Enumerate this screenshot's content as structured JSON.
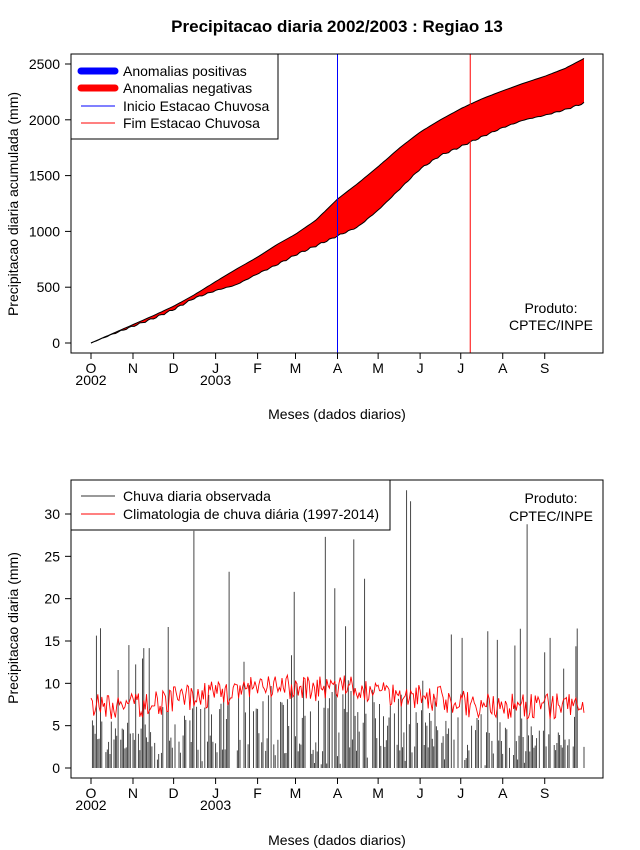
{
  "figure_title": "Precipitacao diaria 2002/2003 : Regiao 13",
  "chart_data": [
    {
      "type": "area",
      "title": "Precipitacao diaria 2002/2003 : Regiao 13",
      "ylabel": "Precipitacao diaria acumulada (mm)",
      "xlabel": "Meses (dados diarios)",
      "ylim": [
        0,
        2600
      ],
      "yticks": [
        0,
        500,
        1000,
        1500,
        2000,
        2500
      ],
      "xticks": [
        {
          "day": 0,
          "label": "O"
        },
        {
          "day": 31,
          "label": "N"
        },
        {
          "day": 61,
          "label": "D"
        },
        {
          "day": 92,
          "label": "J"
        },
        {
          "day": 123,
          "label": "F"
        },
        {
          "day": 151,
          "label": "M"
        },
        {
          "day": 182,
          "label": "A"
        },
        {
          "day": 212,
          "label": "M"
        },
        {
          "day": 243,
          "label": "J"
        },
        {
          "day": 273,
          "label": "J"
        },
        {
          "day": 304,
          "label": "A"
        },
        {
          "day": 335,
          "label": "S"
        }
      ],
      "year_labels": [
        {
          "day": 0,
          "label": "2002"
        },
        {
          "day": 92,
          "label": "2003"
        }
      ],
      "x_day": [
        0,
        15,
        31,
        46,
        61,
        76,
        92,
        107,
        123,
        137,
        151,
        166,
        182,
        197,
        212,
        228,
        243,
        258,
        273,
        289,
        304,
        320,
        335,
        350,
        364
      ],
      "climatology_cumulative": [
        0,
        80,
        165,
        245,
        330,
        430,
        550,
        660,
        770,
        880,
        975,
        1100,
        1290,
        1430,
        1580,
        1750,
        1890,
        2000,
        2100,
        2190,
        2260,
        2330,
        2390,
        2460,
        2550
      ],
      "observed_cumulative": [
        0,
        75,
        150,
        220,
        300,
        400,
        470,
        520,
        620,
        700,
        790,
        870,
        960,
        1040,
        1190,
        1380,
        1560,
        1680,
        1760,
        1850,
        1930,
        2000,
        2040,
        2090,
        2150
      ],
      "rainy_season_start_day": 182,
      "rainy_season_end_day": 280,
      "legend": [
        {
          "label": "Anomalias positivas",
          "color": "#0000ff",
          "kind": "thick"
        },
        {
          "label": "Anomalias negativas",
          "color": "#ff0000",
          "kind": "thick"
        },
        {
          "label": "Inicio Estacao Chuvosa",
          "color": "#0000ff",
          "kind": "thin"
        },
        {
          "label": "Fim Estacao Chuvosa",
          "color": "#ff0000",
          "kind": "thin"
        }
      ],
      "annotation": [
        "Produto:",
        "CPTEC/INPE"
      ]
    },
    {
      "type": "bar",
      "ylabel": "Precipitacao diaria (mm)",
      "xlabel": "Meses (dados diarios)",
      "ylim": [
        0,
        33
      ],
      "yticks": [
        0,
        5,
        10,
        15,
        20,
        25,
        30
      ],
      "xticks": [
        {
          "day": 0,
          "label": "O"
        },
        {
          "day": 31,
          "label": "N"
        },
        {
          "day": 61,
          "label": "D"
        },
        {
          "day": 92,
          "label": "J"
        },
        {
          "day": 123,
          "label": "F"
        },
        {
          "day": 151,
          "label": "M"
        },
        {
          "day": 182,
          "label": "A"
        },
        {
          "day": 212,
          "label": "M"
        },
        {
          "day": 243,
          "label": "J"
        },
        {
          "day": 273,
          "label": "J"
        },
        {
          "day": 304,
          "label": "A"
        },
        {
          "day": 335,
          "label": "S"
        }
      ],
      "year_labels": [
        {
          "day": 0,
          "label": "2002"
        },
        {
          "day": 92,
          "label": "2003"
        }
      ],
      "observed_peaks": [
        {
          "day": 76,
          "value": 28
        },
        {
          "day": 194,
          "value": 27
        },
        {
          "day": 233,
          "value": 32.8
        },
        {
          "day": 236,
          "value": 31.5
        },
        {
          "day": 173,
          "value": 27.3
        },
        {
          "day": 322,
          "value": 28.8
        }
      ],
      "observed_max": 32.8,
      "climatology_typical_range": [
        3,
        13
      ],
      "legend": [
        {
          "label": "Chuva diaria observada",
          "color": "#333333",
          "kind": "thin"
        },
        {
          "label": "Climatologia de chuva diária (1997-2014)",
          "color": "#ff0000",
          "kind": "thin"
        }
      ],
      "annotation": [
        "Produto:",
        "CPTEC/INPE"
      ]
    }
  ]
}
